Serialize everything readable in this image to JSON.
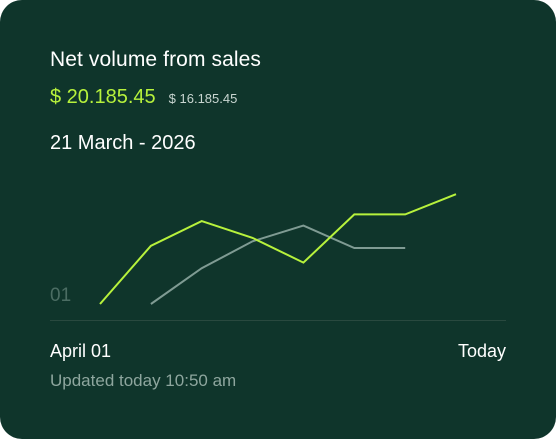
{
  "card": {
    "title": "Net volume from sales",
    "amount_current": "$ 20.185.45",
    "amount_previous": "$ 16.185.45",
    "period": "21 March - 2026",
    "x_start": "April 01",
    "x_end": "Today",
    "updated": "Updated today 10:50 am"
  },
  "colors": {
    "background": "#0f352b",
    "accent": "#b7f23c",
    "secondary_line": "#7f9b93"
  },
  "chart_data": {
    "type": "line",
    "y_tick_label": "01",
    "xlabel": "",
    "ylabel": "",
    "ylim": [
      0,
      100
    ],
    "series": [
      {
        "color": "#b7f23c",
        "x": [
          0,
          1,
          2,
          3,
          4,
          5,
          6,
          7
        ],
        "values": [
          0,
          52,
          74,
          59,
          37,
          80,
          80,
          98
        ]
      },
      {
        "color": "#7f9b93",
        "x": [
          1,
          2,
          3,
          4,
          5,
          6
        ],
        "values": [
          0,
          32,
          56,
          70,
          50,
          50
        ]
      }
    ]
  }
}
